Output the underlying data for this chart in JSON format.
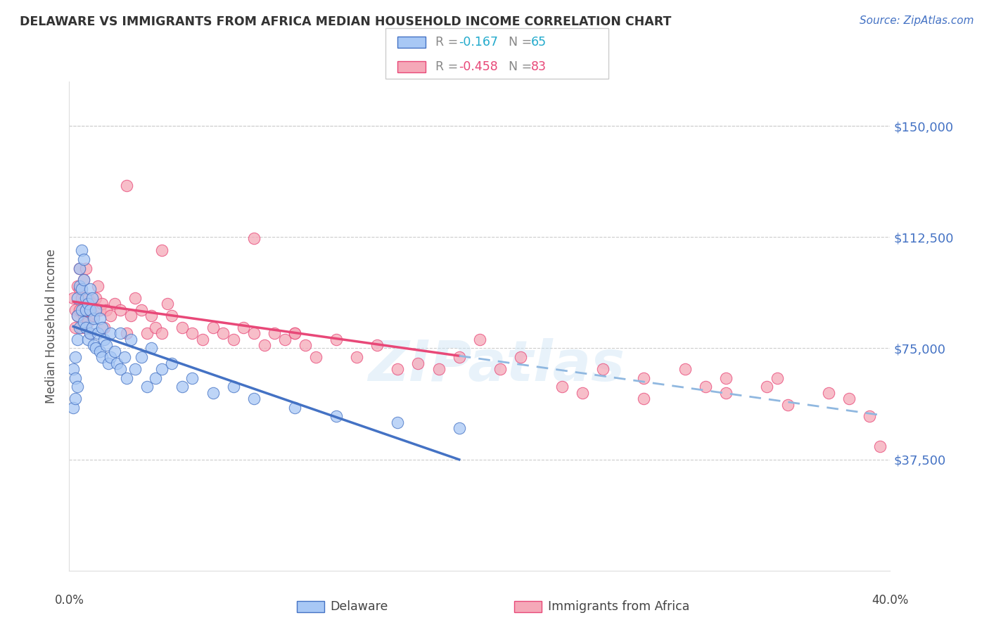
{
  "title": "DELAWARE VS IMMIGRANTS FROM AFRICA MEDIAN HOUSEHOLD INCOME CORRELATION CHART",
  "source": "Source: ZipAtlas.com",
  "ylabel": "Median Household Income",
  "ymin": 0,
  "ymax": 165000,
  "xmin": 0.0,
  "xmax": 0.4,
  "delaware_color": "#a8c8f5",
  "africa_color": "#f5a8b8",
  "delaware_line_color": "#4472c4",
  "africa_line_color": "#e84878",
  "dashed_line_color": "#90b8e0",
  "watermark": "ZIPatlas",
  "delaware_label": "Delaware",
  "africa_label": "Immigrants from Africa",
  "r_del": -0.167,
  "n_del": 65,
  "r_af": -0.458,
  "n_af": 83,
  "delaware_scatter_x": [
    0.002,
    0.002,
    0.003,
    0.003,
    0.003,
    0.004,
    0.004,
    0.004,
    0.004,
    0.005,
    0.005,
    0.005,
    0.006,
    0.006,
    0.006,
    0.007,
    0.007,
    0.007,
    0.008,
    0.008,
    0.008,
    0.009,
    0.009,
    0.01,
    0.01,
    0.01,
    0.011,
    0.011,
    0.012,
    0.012,
    0.013,
    0.013,
    0.014,
    0.015,
    0.015,
    0.016,
    0.016,
    0.017,
    0.018,
    0.019,
    0.02,
    0.02,
    0.022,
    0.023,
    0.025,
    0.025,
    0.027,
    0.028,
    0.03,
    0.032,
    0.035,
    0.038,
    0.04,
    0.042,
    0.045,
    0.05,
    0.055,
    0.06,
    0.07,
    0.08,
    0.09,
    0.11,
    0.13,
    0.16,
    0.19
  ],
  "delaware_scatter_y": [
    68000,
    55000,
    72000,
    65000,
    58000,
    92000,
    86000,
    78000,
    62000,
    102000,
    96000,
    82000,
    108000,
    95000,
    88000,
    105000,
    98000,
    84000,
    92000,
    82000,
    88000,
    90000,
    78000,
    95000,
    88000,
    80000,
    92000,
    82000,
    85000,
    76000,
    88000,
    75000,
    80000,
    85000,
    74000,
    82000,
    72000,
    78000,
    76000,
    70000,
    80000,
    72000,
    74000,
    70000,
    80000,
    68000,
    72000,
    65000,
    78000,
    68000,
    72000,
    62000,
    75000,
    65000,
    68000,
    70000,
    62000,
    65000,
    60000,
    62000,
    58000,
    55000,
    52000,
    50000,
    48000
  ],
  "africa_scatter_x": [
    0.002,
    0.003,
    0.003,
    0.004,
    0.004,
    0.005,
    0.005,
    0.005,
    0.006,
    0.006,
    0.007,
    0.007,
    0.008,
    0.008,
    0.009,
    0.009,
    0.01,
    0.01,
    0.011,
    0.012,
    0.013,
    0.014,
    0.015,
    0.016,
    0.017,
    0.018,
    0.02,
    0.022,
    0.025,
    0.028,
    0.03,
    0.032,
    0.035,
    0.038,
    0.04,
    0.042,
    0.045,
    0.048,
    0.05,
    0.055,
    0.06,
    0.065,
    0.07,
    0.075,
    0.08,
    0.085,
    0.09,
    0.095,
    0.1,
    0.105,
    0.11,
    0.115,
    0.12,
    0.13,
    0.14,
    0.15,
    0.16,
    0.17,
    0.18,
    0.19,
    0.2,
    0.21,
    0.22,
    0.24,
    0.26,
    0.28,
    0.3,
    0.31,
    0.32,
    0.34,
    0.345,
    0.028,
    0.045,
    0.09,
    0.11,
    0.25,
    0.28,
    0.32,
    0.35,
    0.37,
    0.38,
    0.39,
    0.395
  ],
  "africa_scatter_y": [
    92000,
    88000,
    82000,
    96000,
    86000,
    102000,
    95000,
    88000,
    92000,
    82000,
    98000,
    86000,
    102000,
    88000,
    92000,
    84000,
    88000,
    80000,
    90000,
    86000,
    92000,
    96000,
    88000,
    90000,
    82000,
    88000,
    86000,
    90000,
    88000,
    80000,
    86000,
    92000,
    88000,
    80000,
    86000,
    82000,
    80000,
    90000,
    86000,
    82000,
    80000,
    78000,
    82000,
    80000,
    78000,
    82000,
    80000,
    76000,
    80000,
    78000,
    80000,
    76000,
    72000,
    78000,
    72000,
    76000,
    68000,
    70000,
    68000,
    72000,
    78000,
    68000,
    72000,
    62000,
    68000,
    65000,
    68000,
    62000,
    65000,
    62000,
    65000,
    130000,
    108000,
    112000,
    80000,
    60000,
    58000,
    60000,
    56000,
    60000,
    58000,
    52000,
    42000
  ]
}
